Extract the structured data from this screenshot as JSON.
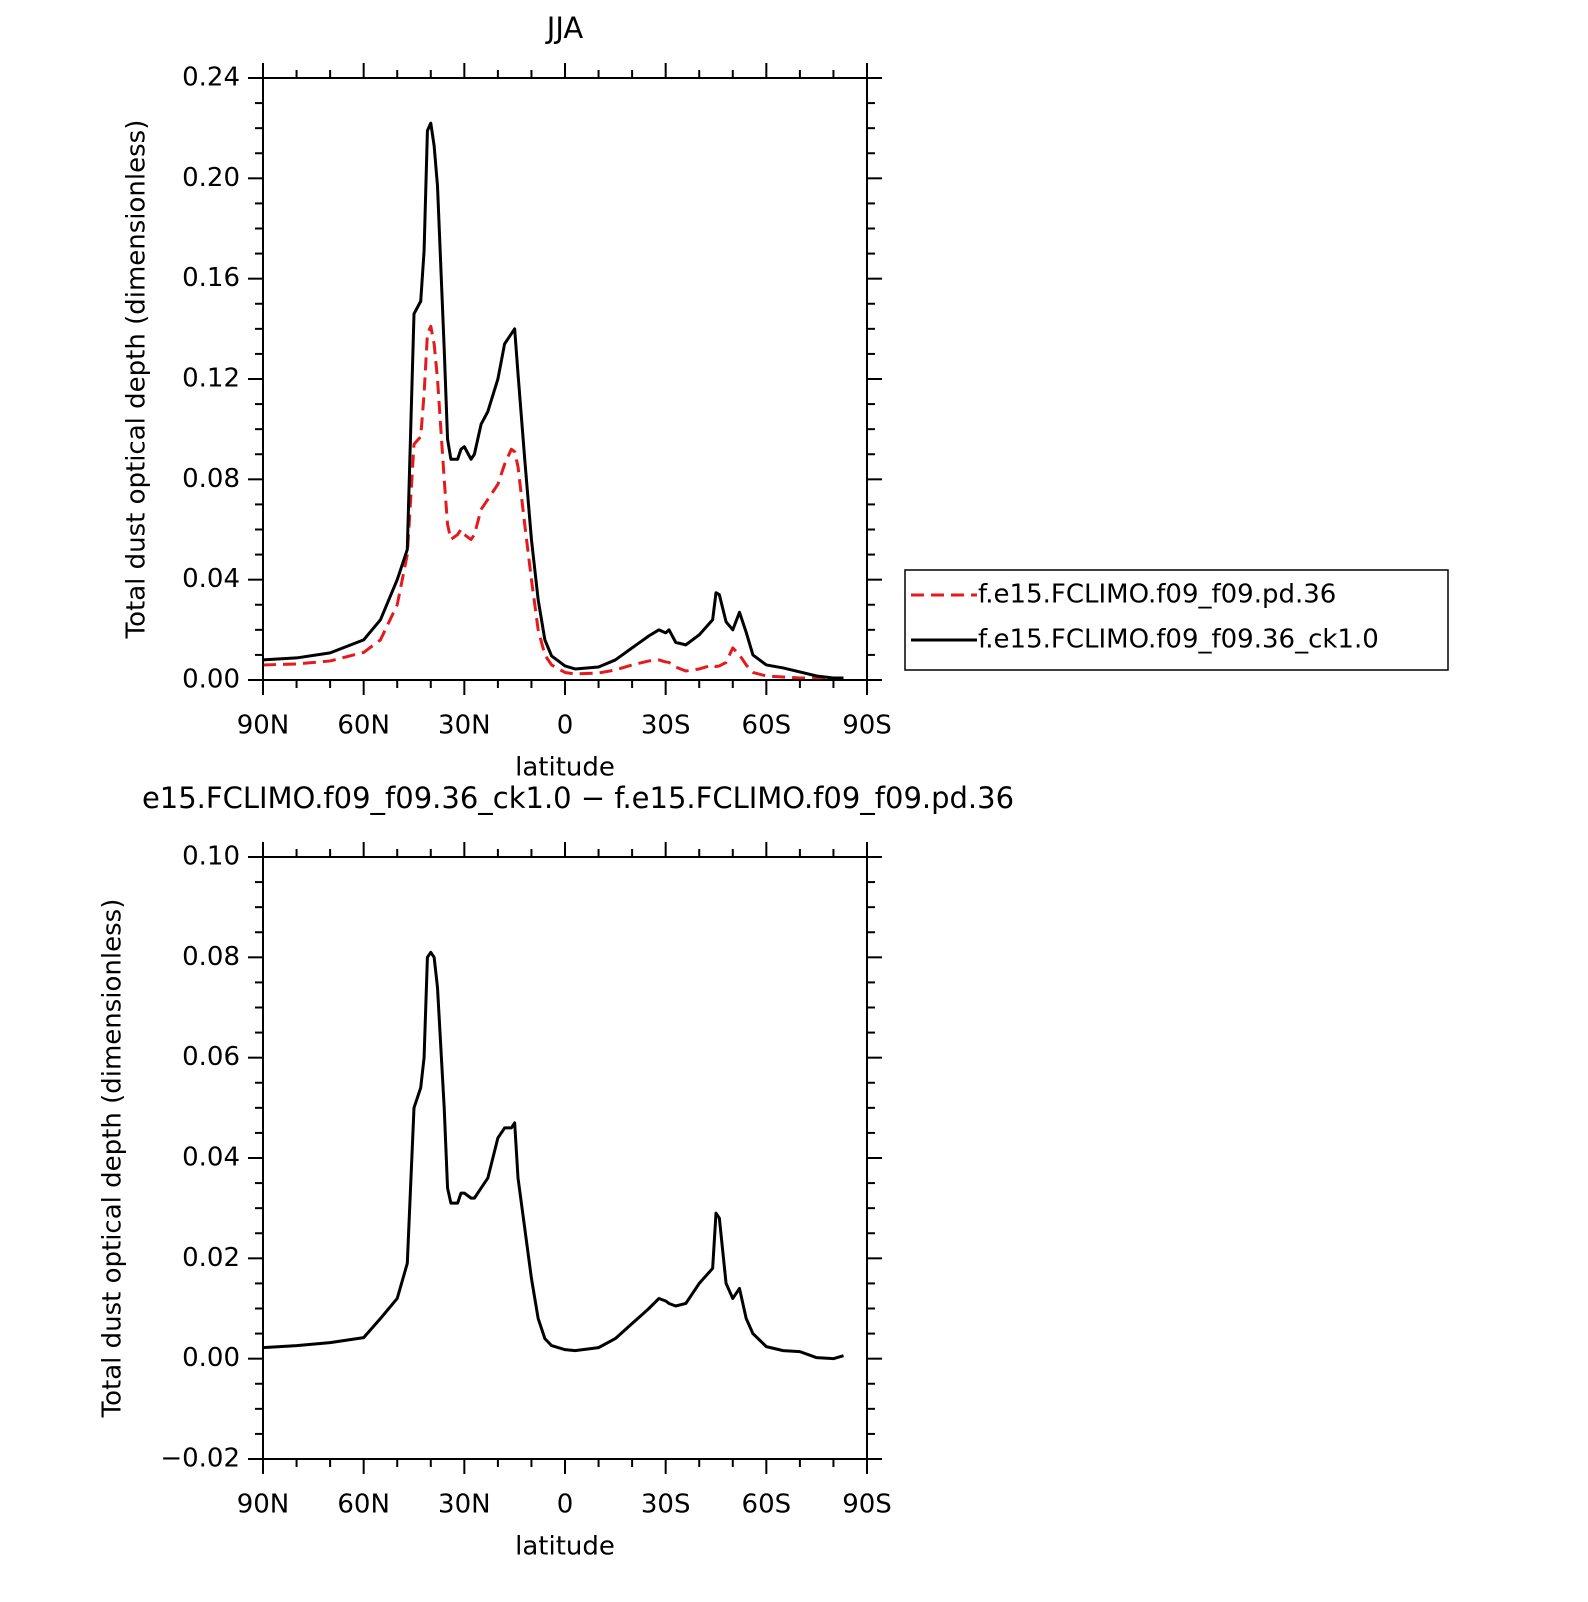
{
  "chart_data": [
    {
      "type": "line",
      "title": "JJA",
      "xlabel": "latitude",
      "ylabel": "Total dust optical depth (dimensionless)",
      "x": [
        90,
        80,
        70,
        60,
        55,
        50,
        47,
        45,
        43,
        42,
        41,
        40,
        39,
        38,
        36,
        35,
        34,
        32,
        31,
        30,
        28,
        27,
        25,
        23,
        20,
        18,
        16,
        15,
        14,
        12,
        10,
        8,
        6,
        4,
        0,
        -3,
        -10,
        -15,
        -20,
        -25,
        -28,
        -30,
        -31,
        -33,
        -36,
        -40,
        -44,
        -45,
        -46,
        -48,
        -50,
        -52,
        -54,
        -56,
        -60,
        -65,
        -70,
        -75,
        -80,
        -83
      ],
      "series": [
        {
          "name": "f.e15.FCLIMO.f09_f09.pd.36",
          "color": "#e41a1c",
          "dashed": true,
          "values": [
            0.006,
            0.0064,
            0.0076,
            0.011,
            0.016,
            0.03,
            0.05,
            0.094,
            0.097,
            0.114,
            0.138,
            0.141,
            0.134,
            0.12,
            0.08,
            0.062,
            0.056,
            0.058,
            0.06,
            0.058,
            0.056,
            0.058,
            0.068,
            0.072,
            0.078,
            0.086,
            0.092,
            0.091,
            0.085,
            0.062,
            0.04,
            0.02,
            0.01,
            0.006,
            0.003,
            0.0024,
            0.0028,
            0.004,
            0.006,
            0.0076,
            0.008,
            0.0072,
            0.007,
            0.0052,
            0.0036,
            0.0044,
            0.006,
            0.0054,
            0.0056,
            0.007,
            0.0128,
            0.01,
            0.006,
            0.003,
            0.0016,
            0.0012,
            0.0008,
            0.0008,
            0.0008,
            0.0008
          ]
        },
        {
          "name": "f.e15.FCLIMO.f09_f09.36_ck1.0",
          "color": "#000000",
          "dashed": false,
          "values": [
            0.008,
            0.0088,
            0.0108,
            0.016,
            0.024,
            0.04,
            0.052,
            0.146,
            0.151,
            0.171,
            0.219,
            0.222,
            0.213,
            0.197,
            0.132,
            0.096,
            0.088,
            0.088,
            0.092,
            0.093,
            0.088,
            0.09,
            0.102,
            0.107,
            0.12,
            0.134,
            0.138,
            0.14,
            0.122,
            0.088,
            0.056,
            0.032,
            0.016,
            0.0096,
            0.0056,
            0.0044,
            0.0052,
            0.008,
            0.0128,
            0.0176,
            0.02,
            0.0188,
            0.02,
            0.015,
            0.014,
            0.018,
            0.024,
            0.0348,
            0.034,
            0.0232,
            0.02,
            0.027,
            0.019,
            0.01,
            0.006,
            0.0048,
            0.0032,
            0.0016,
            0.0008,
            0.0008
          ]
        }
      ],
      "xlim": [
        90,
        -90
      ],
      "xticks": [
        {
          "value": 90,
          "label": "90N"
        },
        {
          "value": 60,
          "label": "60N"
        },
        {
          "value": 30,
          "label": "30N"
        },
        0,
        {
          "value": -30,
          "label": "30S"
        },
        {
          "value": -60,
          "label": "60S"
        },
        {
          "value": -90,
          "label": "90S"
        }
      ],
      "xminorticks": [
        80,
        70,
        50,
        40,
        20,
        10,
        -10,
        -20,
        -40,
        -50,
        -70,
        -80
      ],
      "ylim": [
        0,
        0.24
      ],
      "yticks": [
        {
          "value": 0,
          "label": "0.00"
        },
        0.04,
        0.08,
        0.12,
        0.16,
        {
          "value": 0.2,
          "label": "0.20"
        },
        0.24
      ],
      "yminorticks": [
        0.01,
        0.02,
        0.03,
        0.05,
        0.06,
        0.07,
        0.09,
        0.1,
        0.11,
        0.13,
        0.14,
        0.15,
        0.17,
        0.18,
        0.19,
        0.21,
        0.22,
        0.23
      ],
      "legend": "right"
    },
    {
      "type": "line",
      "title": "e15.FCLIMO.f09_f09.36_ck1.0 − f.e15.FCLIMO.f09_f09.pd.36",
      "xlabel": "latitude",
      "ylabel": "Total dust optical depth (dimensionless)",
      "x": [
        90,
        80,
        70,
        60,
        55,
        50,
        47,
        45,
        43,
        42,
        41,
        40,
        39,
        38,
        36,
        35,
        34,
        32,
        31,
        30,
        28,
        27,
        25,
        23,
        20,
        18,
        16,
        15,
        14,
        12,
        10,
        8,
        6,
        4,
        0,
        -3,
        -10,
        -15,
        -20,
        -25,
        -28,
        -30,
        -31,
        -33,
        -36,
        -40,
        -44,
        -45,
        -46,
        -48,
        -50,
        -52,
        -54,
        -56,
        -60,
        -65,
        -70,
        -75,
        -80,
        -83
      ],
      "series": [
        {
          "color": "#000000",
          "dashed": false,
          "values": [
            0.0022,
            0.0026,
            0.0032,
            0.0042,
            0.008,
            0.012,
            0.019,
            0.05,
            0.054,
            0.06,
            0.08,
            0.081,
            0.08,
            0.074,
            0.05,
            0.034,
            0.031,
            0.031,
            0.033,
            0.033,
            0.032,
            0.032,
            0.034,
            0.036,
            0.044,
            0.046,
            0.046,
            0.047,
            0.036,
            0.026,
            0.016,
            0.008,
            0.004,
            0.0026,
            0.0018,
            0.0016,
            0.0022,
            0.004,
            0.007,
            0.01,
            0.012,
            0.0115,
            0.011,
            0.0105,
            0.011,
            0.015,
            0.018,
            0.029,
            0.028,
            0.015,
            0.012,
            0.014,
            0.008,
            0.005,
            0.0024,
            0.0016,
            0.0014,
            0.0002,
            0.0,
            0.0006
          ]
        }
      ],
      "xlim": [
        90,
        -90
      ],
      "xticks": [
        {
          "value": 90,
          "label": "90N"
        },
        {
          "value": 60,
          "label": "60N"
        },
        {
          "value": 30,
          "label": "30N"
        },
        0,
        {
          "value": -30,
          "label": "30S"
        },
        {
          "value": -60,
          "label": "60S"
        },
        {
          "value": -90,
          "label": "90S"
        }
      ],
      "xminorticks": [
        80,
        70,
        50,
        40,
        20,
        10,
        -10,
        -20,
        -40,
        -50,
        -70,
        -80
      ],
      "ylim": [
        -0.02,
        0.1
      ],
      "yticks": [
        {
          "value": -0.02,
          "label": "−0.02"
        },
        {
          "value": 0,
          "label": "0.00"
        },
        0.02,
        0.04,
        0.06,
        0.08,
        {
          "value": 0.1,
          "label": "0.10"
        }
      ],
      "yminorticks": [
        -0.015,
        -0.01,
        -0.005,
        0.005,
        0.01,
        0.015,
        0.025,
        0.03,
        0.035,
        0.045,
        0.05,
        0.055,
        0.065,
        0.07,
        0.075,
        0.085,
        0.09,
        0.095
      ]
    }
  ]
}
